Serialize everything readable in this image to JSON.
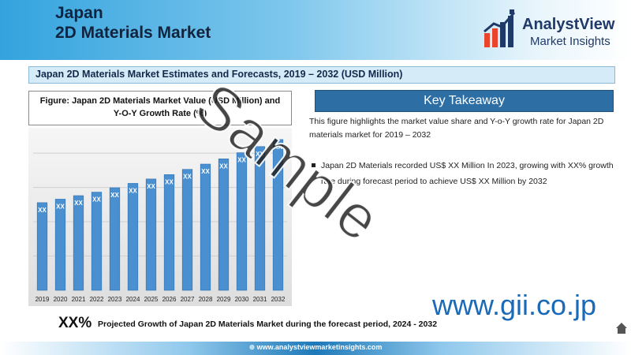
{
  "header": {
    "title_line1": "Japan",
    "title_line2": "2D Materials Market"
  },
  "logo": {
    "icon": "analystview-logo-icon",
    "name": "AnalystView",
    "tagline": "Market Insights"
  },
  "section": {
    "title": "Japan 2D Materials Market Estimates and Forecasts, 2019 – 2032 (USD Million)"
  },
  "figure": {
    "caption_line1": "Figure: Japan 2D Materials Market Value (USD Million) and",
    "caption_line2": "Y-O-Y Growth Rate (%)"
  },
  "key_takeaway": {
    "title": "Key Takeaway",
    "description": "This figure highlights the market value share and Y-o-Y growth rate for Japan 2D materials market for 2019 – 2032",
    "bullet": "Japan 2D Materials recorded US$ XX Million In 2023, growing with XX% growth rate during forecast period to achieve US$ XX Million by 2032"
  },
  "growth": {
    "value": "XX%",
    "text": "Projected Growth of Japan 2D Materials Market during the forecast period, 2024 - 2032"
  },
  "footer": {
    "url": "www.analystviewmarketinsights.com"
  },
  "watermark": {
    "sample": "Sample",
    "site": "www.gii.co.jp"
  },
  "colors": {
    "bar": "#4a8fcf",
    "bar_edge": "#2f73b5",
    "header_blue": "#33a3de",
    "key_box": "#2d6ea4"
  },
  "chart_data": {
    "type": "bar",
    "categories": [
      "2019",
      "2020",
      "2021",
      "2022",
      "2023",
      "2024",
      "2025",
      "2026",
      "2027",
      "2028",
      "2029",
      "2030",
      "2031",
      "2032"
    ],
    "values": [
      1.0,
      1.04,
      1.08,
      1.12,
      1.17,
      1.22,
      1.27,
      1.32,
      1.38,
      1.44,
      1.5,
      1.57,
      1.64,
      1.72
    ],
    "data_labels": [
      "XX",
      "XX",
      "XX",
      "XX",
      "XX",
      "XX",
      "XX",
      "XX",
      "XX",
      "XX",
      "XX",
      "XX",
      "XX",
      "XX"
    ],
    "ylim": [
      0,
      1.8
    ],
    "grid": true
  }
}
